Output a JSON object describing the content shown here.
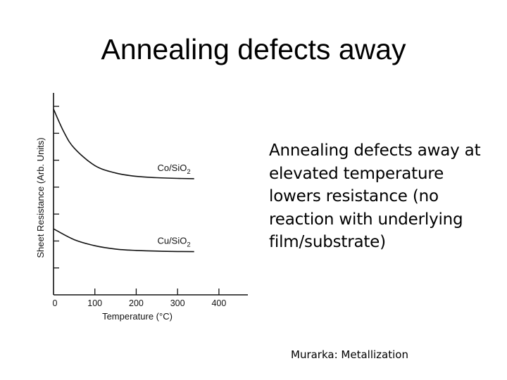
{
  "slide": {
    "title": "Annealing defects away",
    "body": "Annealing defects away at elevated temperature lowers resistance (no reaction with underlying film/substrate)",
    "citation": "Murarka: Metallization"
  },
  "chart_data": {
    "type": "line",
    "title": "",
    "xlabel": "Temperature (°C)",
    "ylabel": "Sheet Resistance (Arb. Units)",
    "xlim": [
      0,
      470
    ],
    "ylim": [
      0,
      15
    ],
    "x_ticks": [
      0,
      100,
      200,
      300,
      400
    ],
    "y_minor_ticks": [
      2,
      4,
      6,
      8,
      10,
      12,
      14
    ],
    "grid": false,
    "legend": "none",
    "series": [
      {
        "name": "Co/SiO2",
        "label_main": "Co/SiO",
        "label_sub": "2",
        "color": "#111111",
        "x": [
          0,
          25,
          50,
          100,
          150,
          200,
          250,
          300,
          340
        ],
        "y": [
          13.8,
          12.1,
          10.9,
          9.6,
          9.05,
          8.8,
          8.7,
          8.65,
          8.63
        ]
      },
      {
        "name": "Cu/SiO2",
        "label_main": "Cu/SiO",
        "label_sub": "2",
        "color": "#111111",
        "x": [
          0,
          50,
          100,
          150,
          200,
          250,
          300,
          340
        ],
        "y": [
          4.9,
          4.1,
          3.65,
          3.4,
          3.3,
          3.25,
          3.22,
          3.21
        ]
      }
    ]
  }
}
